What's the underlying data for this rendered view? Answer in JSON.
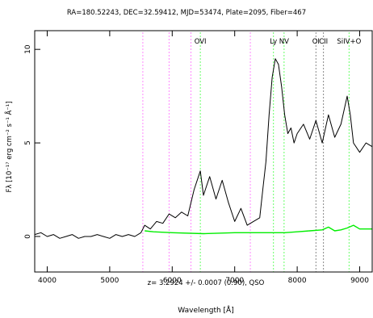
{
  "chart_data": {
    "type": "line",
    "title": "RA=180.52243, DEC=32.59412, MJD=53474, Plate=2095, Fiber=467",
    "xlabel": "Wavelength [Å]",
    "ylabel": "Fλ [10⁻¹⁷ erg cm⁻² s⁻¹ Å⁻¹]",
    "xlim": [
      3800,
      9200
    ],
    "ylim": [
      -1.9,
      11.0
    ],
    "x_ticks": [
      4000,
      5000,
      6000,
      7000,
      8000,
      9000
    ],
    "x_tick_labels": [
      "4000",
      "5000",
      "6000",
      "7000",
      "8000",
      "9000"
    ],
    "y_ticks": [
      0,
      5,
      10
    ],
    "y_tick_labels": [
      "0",
      "5",
      "10"
    ],
    "annotation": "z= 3.2924 +/- 0.0007 (0.90), QSO",
    "grid": false,
    "series": [
      {
        "role": "spectrum",
        "color": "#000000",
        "points": [
          [
            3800,
            0.1
          ],
          [
            3900,
            0.2
          ],
          [
            4000,
            0.0
          ],
          [
            4100,
            0.1
          ],
          [
            4200,
            -0.1
          ],
          [
            4300,
            0.0
          ],
          [
            4400,
            0.1
          ],
          [
            4500,
            -0.1
          ],
          [
            4600,
            0.0
          ],
          [
            4700,
            0.0
          ],
          [
            4800,
            0.1
          ],
          [
            4900,
            0.0
          ],
          [
            5000,
            -0.1
          ],
          [
            5100,
            0.1
          ],
          [
            5200,
            0.0
          ],
          [
            5300,
            0.1
          ],
          [
            5400,
            0.0
          ],
          [
            5500,
            0.2
          ],
          [
            5560,
            0.6
          ],
          [
            5650,
            0.4
          ],
          [
            5750,
            0.8
          ],
          [
            5850,
            0.7
          ],
          [
            5950,
            1.2
          ],
          [
            6050,
            1.0
          ],
          [
            6150,
            1.3
          ],
          [
            6250,
            1.1
          ],
          [
            6350,
            2.5
          ],
          [
            6450,
            3.5
          ],
          [
            6500,
            2.2
          ],
          [
            6600,
            3.2
          ],
          [
            6700,
            2.0
          ],
          [
            6800,
            3.0
          ],
          [
            6900,
            1.8
          ],
          [
            7000,
            0.8
          ],
          [
            7100,
            1.5
          ],
          [
            7200,
            0.6
          ],
          [
            7300,
            0.8
          ],
          [
            7400,
            1.0
          ],
          [
            7450,
            2.5
          ],
          [
            7500,
            4.0
          ],
          [
            7550,
            6.5
          ],
          [
            7600,
            8.5
          ],
          [
            7650,
            9.5
          ],
          [
            7700,
            9.2
          ],
          [
            7750,
            8.0
          ],
          [
            7800,
            6.5
          ],
          [
            7850,
            5.5
          ],
          [
            7900,
            5.8
          ],
          [
            7950,
            5.0
          ],
          [
            8000,
            5.5
          ],
          [
            8100,
            6.0
          ],
          [
            8200,
            5.2
          ],
          [
            8300,
            6.2
          ],
          [
            8400,
            5.0
          ],
          [
            8500,
            6.5
          ],
          [
            8600,
            5.3
          ],
          [
            8700,
            6.0
          ],
          [
            8800,
            7.5
          ],
          [
            8850,
            6.5
          ],
          [
            8900,
            5.0
          ],
          [
            9000,
            4.5
          ],
          [
            9100,
            5.0
          ],
          [
            9200,
            4.8
          ]
        ]
      },
      {
        "role": "error",
        "color": "#00ee00",
        "points": [
          [
            5560,
            0.3
          ],
          [
            5700,
            0.25
          ],
          [
            6000,
            0.2
          ],
          [
            6500,
            0.15
          ],
          [
            7000,
            0.2
          ],
          [
            7500,
            0.2
          ],
          [
            7800,
            0.2
          ],
          [
            8000,
            0.25
          ],
          [
            8200,
            0.3
          ],
          [
            8400,
            0.35
          ],
          [
            8500,
            0.5
          ],
          [
            8600,
            0.3
          ],
          [
            8700,
            0.35
          ],
          [
            8800,
            0.45
          ],
          [
            8900,
            0.6
          ],
          [
            9000,
            0.4
          ],
          [
            9200,
            0.4
          ]
        ]
      }
    ],
    "lines": [
      {
        "x": 5530,
        "color": "#ff88ff",
        "label": ""
      },
      {
        "x": 5950,
        "color": "#ff88ff",
        "label": ""
      },
      {
        "x": 6300,
        "color": "#ff88ff",
        "label": ""
      },
      {
        "x": 6450,
        "color": "#66ff66",
        "label": "OVI"
      },
      {
        "x": 7250,
        "color": "#ff88ff",
        "label": ""
      },
      {
        "x": 7620,
        "color": "#66ff66",
        "label": "Ly"
      },
      {
        "x": 7790,
        "color": "#66ff66",
        "label": "NV"
      },
      {
        "x": 8300,
        "color": "#888888",
        "label": "OI"
      },
      {
        "x": 8420,
        "color": "#888888",
        "label": "CII"
      },
      {
        "x": 8830,
        "color": "#66ff66",
        "label": "SiIV+O"
      }
    ]
  }
}
